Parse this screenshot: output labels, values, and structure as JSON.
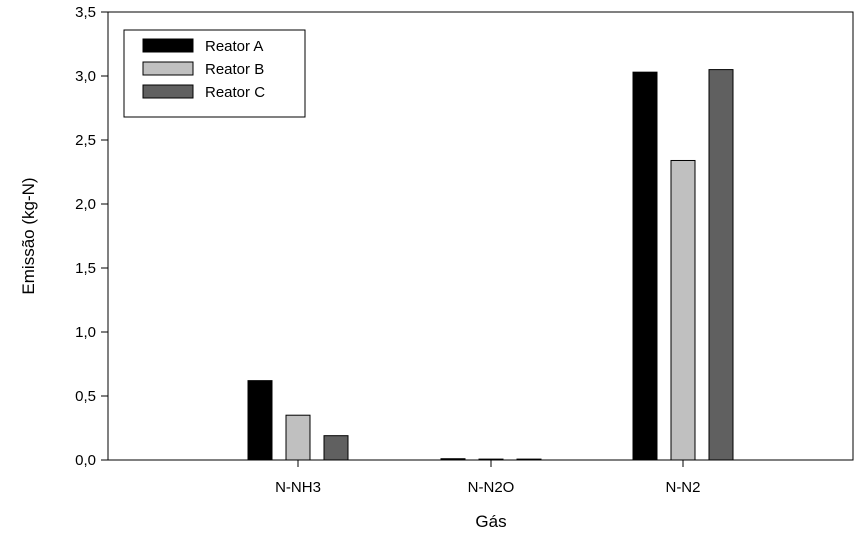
{
  "chart_data": {
    "type": "bar",
    "xlabel": "Gás",
    "ylabel": "Emissão (kg-N)",
    "categories": [
      "N-NH3",
      "N-N2O",
      "N-N2"
    ],
    "ylim": [
      0,
      3.5
    ],
    "yticks": [
      "0,0",
      "0,5",
      "1,0",
      "1,5",
      "2,0",
      "2,5",
      "3,0",
      "3,5"
    ],
    "grid": false,
    "legend_position": "top-left",
    "series": [
      {
        "name": "Reator A",
        "color": "#000000",
        "values": [
          0.62,
          0.01,
          3.03
        ]
      },
      {
        "name": "Reator B",
        "color": "#c0c0c0",
        "values": [
          0.35,
          0.007,
          2.34
        ]
      },
      {
        "name": "Reator C",
        "color": "#606060",
        "values": [
          0.19,
          0.007,
          3.05
        ]
      }
    ]
  }
}
